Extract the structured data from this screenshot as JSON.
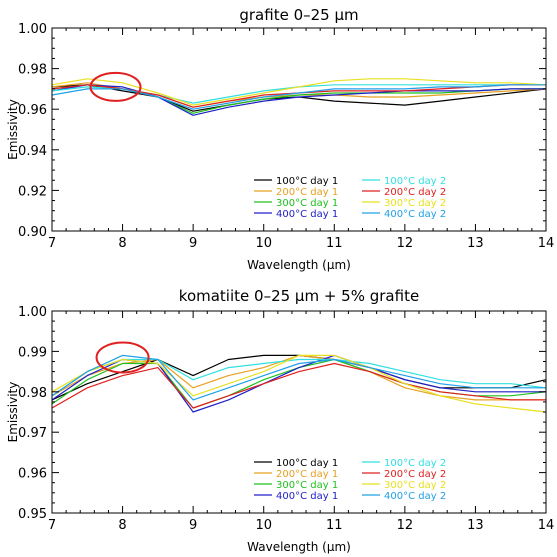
{
  "colors": {
    "100C": "#000000",
    "200C": "#e8a020",
    "300C": "#20c020",
    "400C": "#2020c8",
    "100C_d2": "#30e0e0",
    "200C_d2": "#e02020",
    "300C_d2": "#e8e020",
    "400C_d2": "#20a0e8",
    "highlight_circle": "#e02020"
  },
  "chart_data": [
    {
      "type": "line",
      "title": "grafite 0–25 μm",
      "xlabel": "Wavelength (μm)",
      "ylabel": "Emissivity",
      "xlim": [
        7,
        14
      ],
      "ylim": [
        0.9,
        1.0
      ],
      "xticks": [
        7,
        8,
        9,
        10,
        11,
        12,
        13,
        14
      ],
      "yticks": [
        0.9,
        0.92,
        0.94,
        0.96,
        0.98,
        1.0
      ],
      "xtick_labels": [
        "7",
        "8",
        "9",
        "10",
        "11",
        "12",
        "13",
        "14"
      ],
      "ytick_labels": [
        "0.90",
        "0.92",
        "0.94",
        "0.96",
        "0.98",
        "1.00"
      ],
      "highlight": {
        "shape": "ellipse",
        "x": 7.9,
        "y": 0.971
      },
      "x": [
        7.0,
        7.5,
        8.0,
        8.5,
        9.0,
        9.5,
        10.0,
        10.5,
        11.0,
        11.5,
        12.0,
        12.5,
        13.0,
        13.5,
        14.0
      ],
      "series": [
        {
          "name": "100°C day 1",
          "color": "#000000",
          "values": [
            0.971,
            0.972,
            0.969,
            0.966,
            0.959,
            0.962,
            0.965,
            0.966,
            0.964,
            0.963,
            0.962,
            0.964,
            0.966,
            0.968,
            0.97
          ]
        },
        {
          "name": "200°C day 1",
          "color": "#e8a020",
          "values": [
            0.971,
            0.973,
            0.97,
            0.967,
            0.961,
            0.964,
            0.966,
            0.967,
            0.967,
            0.966,
            0.966,
            0.967,
            0.968,
            0.969,
            0.97
          ]
        },
        {
          "name": "300°C day 1",
          "color": "#20c020",
          "values": [
            0.97,
            0.972,
            0.97,
            0.966,
            0.958,
            0.962,
            0.965,
            0.967,
            0.968,
            0.968,
            0.968,
            0.968,
            0.969,
            0.97,
            0.97
          ]
        },
        {
          "name": "400°C day 1",
          "color": "#2020c8",
          "values": [
            0.969,
            0.972,
            0.971,
            0.966,
            0.957,
            0.961,
            0.964,
            0.966,
            0.967,
            0.968,
            0.969,
            0.969,
            0.969,
            0.97,
            0.97
          ]
        },
        {
          "name": "100°C day 2",
          "color": "#30e0e0",
          "values": [
            0.969,
            0.971,
            0.97,
            0.967,
            0.963,
            0.966,
            0.969,
            0.971,
            0.972,
            0.972,
            0.972,
            0.972,
            0.972,
            0.972,
            0.972
          ]
        },
        {
          "name": "200°C day 2",
          "color": "#e02020",
          "values": [
            0.97,
            0.972,
            0.97,
            0.967,
            0.961,
            0.964,
            0.967,
            0.968,
            0.969,
            0.969,
            0.969,
            0.97,
            0.971,
            0.972,
            0.972
          ]
        },
        {
          "name": "300°C day 2",
          "color": "#e8e020",
          "values": [
            0.972,
            0.975,
            0.973,
            0.968,
            0.962,
            0.965,
            0.968,
            0.971,
            0.974,
            0.975,
            0.975,
            0.974,
            0.973,
            0.973,
            0.972
          ]
        },
        {
          "name": "400°C day 2",
          "color": "#20a0e8",
          "values": [
            0.967,
            0.97,
            0.97,
            0.966,
            0.96,
            0.963,
            0.966,
            0.968,
            0.97,
            0.97,
            0.97,
            0.971,
            0.971,
            0.972,
            0.972
          ]
        }
      ]
    },
    {
      "type": "line",
      "title": "komatiite 0–25 μm + 5% grafite",
      "xlabel": "Wavelength (μm)",
      "ylabel": "Emissivity",
      "xlim": [
        7,
        14
      ],
      "ylim": [
        0.95,
        1.0
      ],
      "xticks": [
        7,
        8,
        9,
        10,
        11,
        12,
        13,
        14
      ],
      "yticks": [
        0.95,
        0.96,
        0.97,
        0.98,
        0.99,
        1.0
      ],
      "xtick_labels": [
        "7",
        "8",
        "9",
        "10",
        "11",
        "12",
        "13",
        "14"
      ],
      "ytick_labels": [
        "0.95",
        "0.96",
        "0.97",
        "0.98",
        "0.99",
        "1.00"
      ],
      "highlight": {
        "shape": "ellipse",
        "x": 8.0,
        "y": 0.9885
      },
      "x": [
        7.0,
        7.5,
        8.0,
        8.5,
        9.0,
        9.5,
        10.0,
        10.5,
        11.0,
        11.5,
        12.0,
        12.5,
        13.0,
        13.5,
        14.0
      ],
      "series": [
        {
          "name": "100°C day 1",
          "color": "#000000",
          "values": [
            0.978,
            0.982,
            0.985,
            0.988,
            0.984,
            0.988,
            0.989,
            0.989,
            0.988,
            0.986,
            0.983,
            0.981,
            0.981,
            0.981,
            0.983
          ]
        },
        {
          "name": "200°C day 1",
          "color": "#e8a020",
          "values": [
            0.979,
            0.984,
            0.987,
            0.988,
            0.981,
            0.984,
            0.986,
            0.989,
            0.988,
            0.985,
            0.981,
            0.979,
            0.978,
            0.978,
            0.978
          ]
        },
        {
          "name": "300°C day 1",
          "color": "#20c020",
          "values": [
            0.977,
            0.983,
            0.987,
            0.987,
            0.976,
            0.979,
            0.983,
            0.986,
            0.988,
            0.985,
            0.982,
            0.98,
            0.979,
            0.979,
            0.98
          ]
        },
        {
          "name": "400°C day 1",
          "color": "#2020c8",
          "values": [
            0.978,
            0.984,
            0.988,
            0.987,
            0.975,
            0.978,
            0.982,
            0.986,
            0.989,
            0.986,
            0.983,
            0.981,
            0.98,
            0.98,
            0.98
          ]
        },
        {
          "name": "100°C day 2",
          "color": "#30e0e0",
          "values": [
            0.979,
            0.985,
            0.988,
            0.988,
            0.983,
            0.986,
            0.987,
            0.988,
            0.988,
            0.987,
            0.985,
            0.983,
            0.982,
            0.982,
            0.981
          ]
        },
        {
          "name": "200°C day 2",
          "color": "#e02020",
          "values": [
            0.976,
            0.981,
            0.984,
            0.986,
            0.976,
            0.979,
            0.982,
            0.985,
            0.987,
            0.985,
            0.982,
            0.98,
            0.979,
            0.978,
            0.978
          ]
        },
        {
          "name": "300°C day 2",
          "color": "#e8e020",
          "values": [
            0.98,
            0.985,
            0.988,
            0.987,
            0.979,
            0.982,
            0.985,
            0.989,
            0.989,
            0.986,
            0.982,
            0.979,
            0.977,
            0.976,
            0.975
          ]
        },
        {
          "name": "400°C day 2",
          "color": "#20a0e8",
          "values": [
            0.979,
            0.985,
            0.989,
            0.988,
            0.978,
            0.981,
            0.984,
            0.987,
            0.988,
            0.986,
            0.984,
            0.982,
            0.981,
            0.981,
            0.981
          ]
        }
      ]
    }
  ]
}
